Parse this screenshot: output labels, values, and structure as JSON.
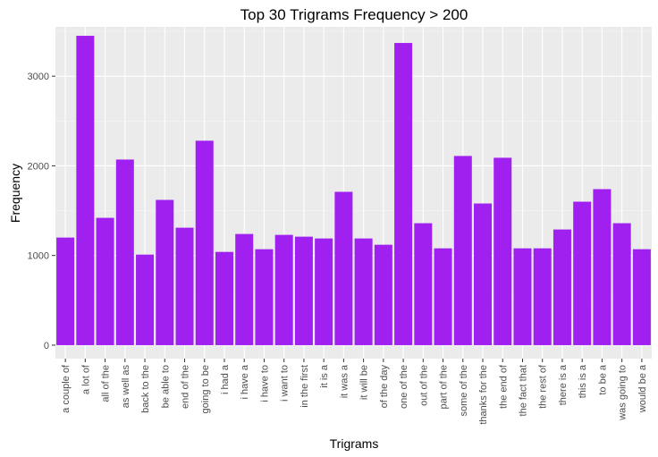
{
  "chart_data": {
    "type": "bar",
    "title": "Top 30 Trigrams Frequency > 200",
    "xlabel": "Trigrams",
    "ylabel": "Frequency",
    "ylim": [
      -150,
      3550
    ],
    "yticks": [
      0,
      1000,
      2000,
      3000
    ],
    "grid": true,
    "bar_color": "#A020F0",
    "panel_color": "#EBEBEB",
    "categories": [
      "a couple of",
      "a lot of",
      "all of the",
      "as well as",
      "back to the",
      "be able to",
      "end of the",
      "going to be",
      "i had a",
      "i have a",
      "i have to",
      "i want to",
      "in the first",
      "it is a",
      "it was a",
      "it will be",
      "of the day",
      "one of the",
      "out of the",
      "part of the",
      "some of the",
      "thanks for the",
      "the end of",
      "the fact that",
      "the rest of",
      "there is a",
      "this is a",
      "to be a",
      "was going to",
      "would be a"
    ],
    "values": [
      1200,
      3450,
      1420,
      2070,
      1010,
      1620,
      1310,
      2280,
      1040,
      1240,
      1070,
      1230,
      1210,
      1190,
      1710,
      1190,
      1120,
      3370,
      1360,
      1080,
      2110,
      1580,
      2090,
      1080,
      1080,
      1290,
      1600,
      1740,
      1360,
      1070
    ]
  }
}
